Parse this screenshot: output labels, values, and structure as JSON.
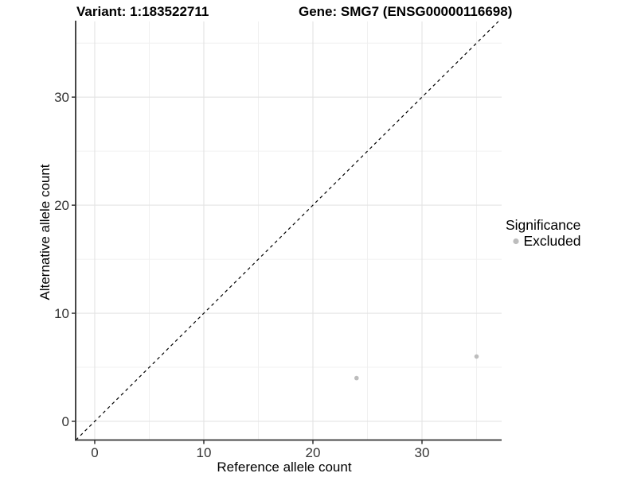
{
  "header": {
    "variant_title": "Variant: 1:183522711",
    "gene_title": "Gene: SMG7 (ENSG00000116698)"
  },
  "legend": {
    "title": "Significance",
    "items": [
      {
        "label": "Excluded",
        "color": "#bdbdbd"
      }
    ]
  },
  "chart_data": {
    "type": "scatter",
    "xlabel": "Reference allele count",
    "ylabel": "Alternative allele count",
    "xlim": [
      -1.75,
      37.3
    ],
    "ylim": [
      -1.73,
      37.0
    ],
    "x_ticks": [
      0,
      10,
      20,
      30
    ],
    "y_ticks": [
      0,
      10,
      20,
      30
    ],
    "x_minor_ticks": [
      5,
      15,
      25,
      35
    ],
    "y_minor_ticks": [
      5,
      15,
      25,
      35
    ],
    "grid_on": true,
    "grid": {
      "major_color": "#e3e3e3",
      "minor_color": "#f0f0f0"
    },
    "axis_color": "#333333",
    "identity_line": {
      "style": "dashed",
      "color": "#000000",
      "equation": "y = x"
    },
    "point_radius": 2.8,
    "legend_position": "right",
    "series": [
      {
        "name": "Excluded",
        "color": "#bdbdbd",
        "points": [
          {
            "x": 24,
            "y": 4
          },
          {
            "x": 35,
            "y": 6
          }
        ]
      }
    ]
  }
}
